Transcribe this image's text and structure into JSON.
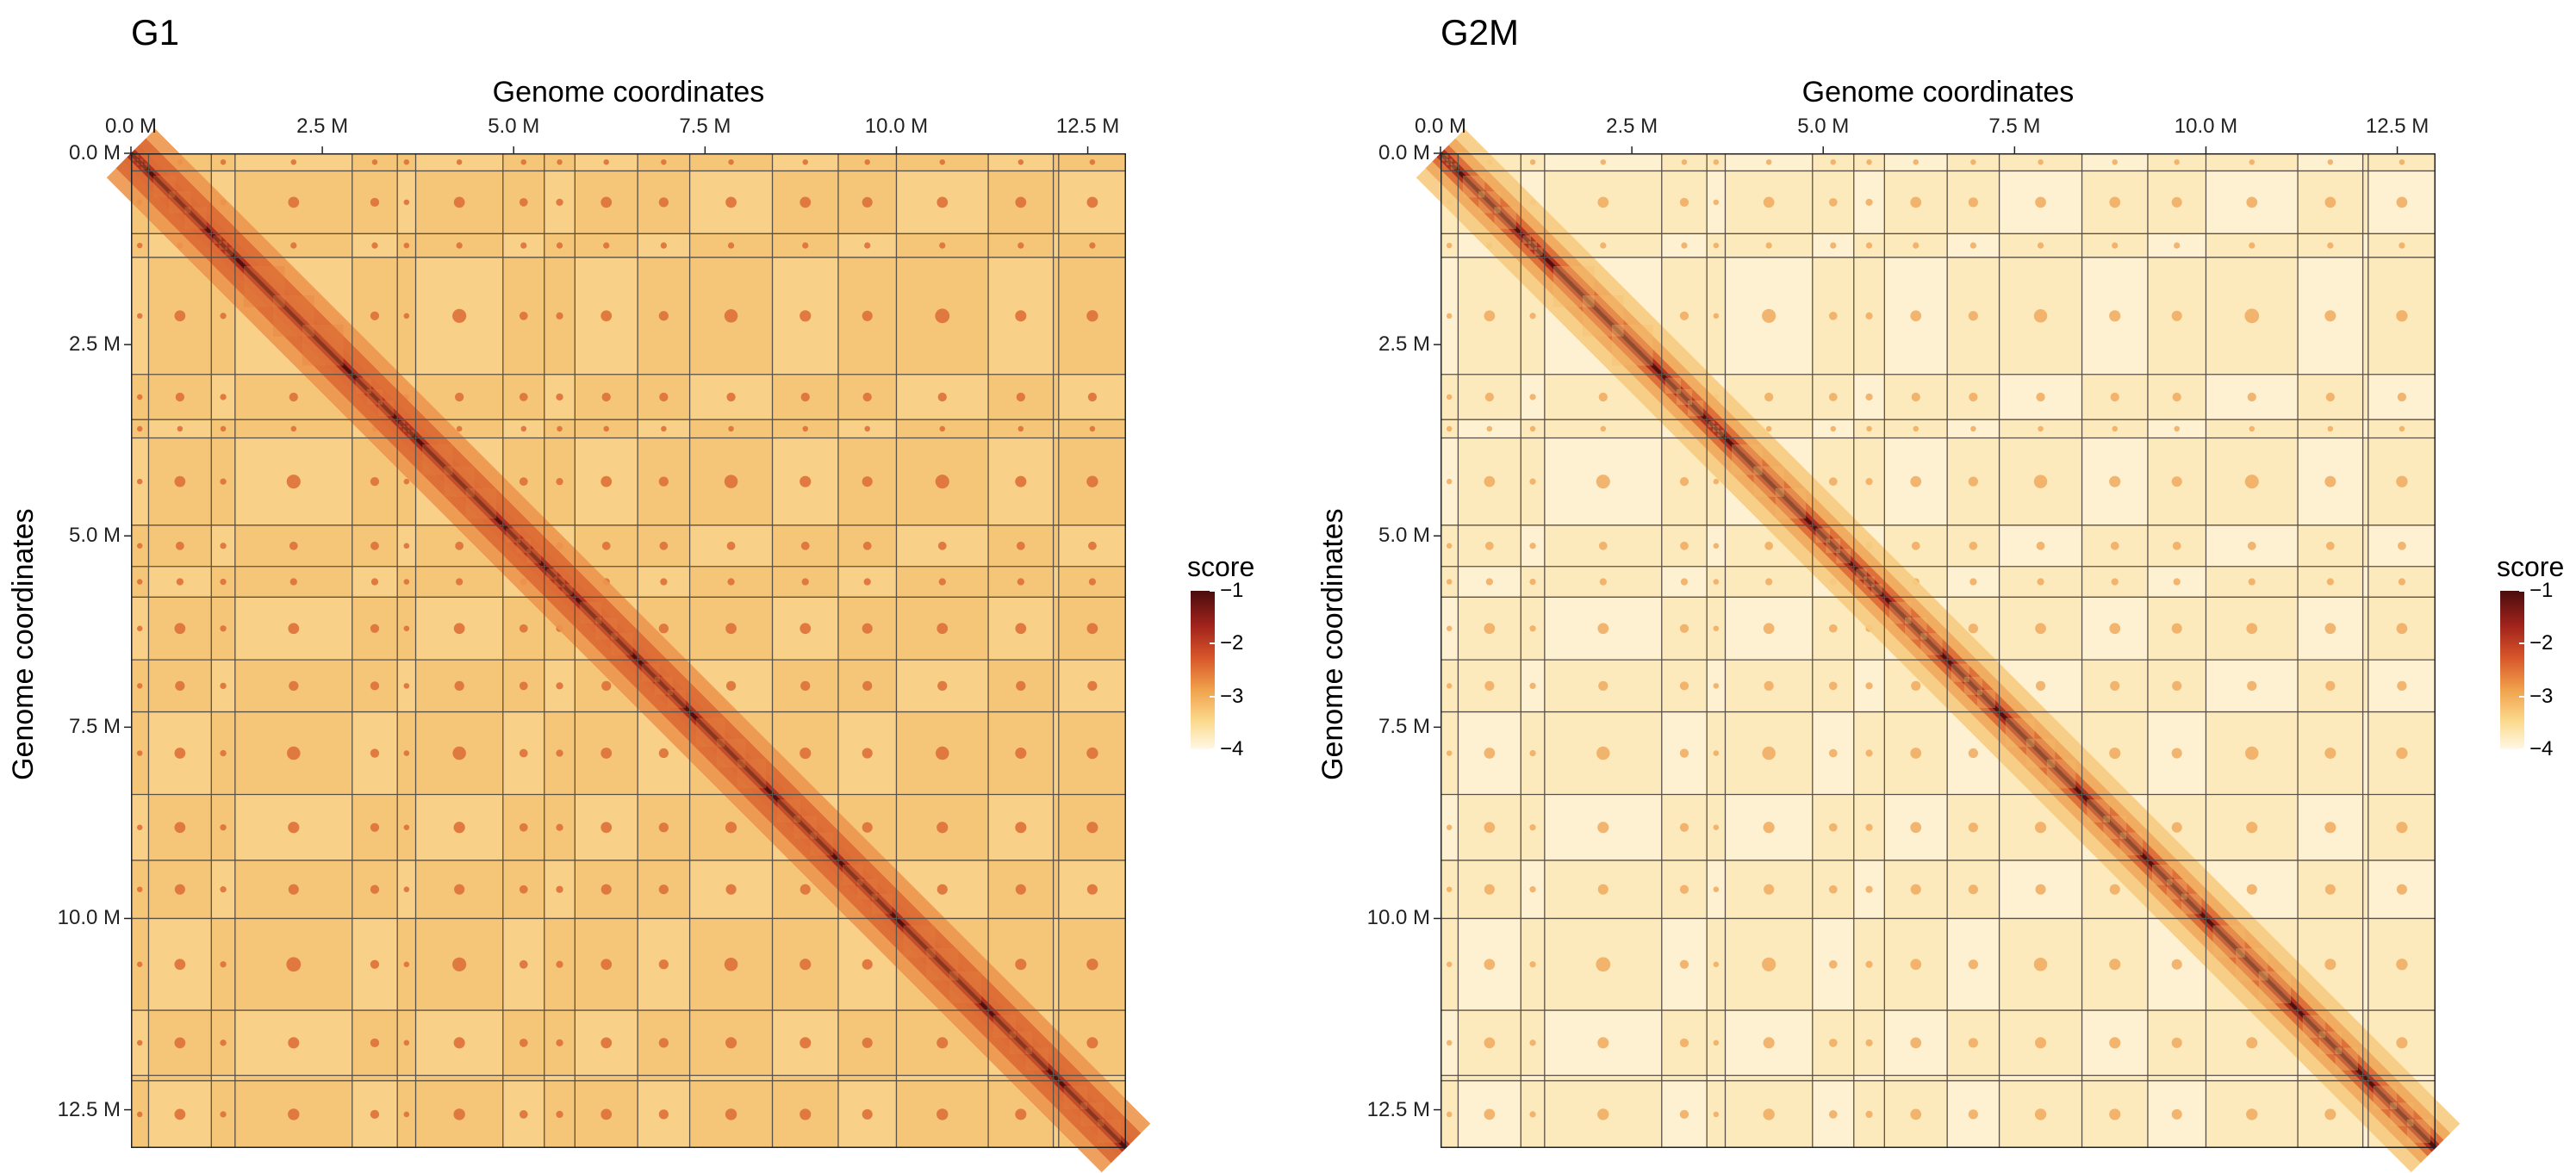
{
  "chart_data": [
    {
      "type": "heatmap",
      "title": "G1",
      "xlabel": "Genome coordinates",
      "ylabel": "Genome coordinates",
      "xlim": [
        0,
        13.0
      ],
      "ylim": [
        0,
        13.0
      ],
      "x_ticks": [
        "0.0 M",
        "2.5 M",
        "5.0 M",
        "7.5 M",
        "10.0 M",
        "12.5 M"
      ],
      "y_ticks": [
        "0.0 M",
        "2.5 M",
        "5.0 M",
        "7.5 M",
        "10.0 M",
        "12.5 M"
      ],
      "tick_values": [
        0,
        2.5,
        5.0,
        7.5,
        10.0,
        12.5
      ],
      "boundaries_mb": [
        0.23,
        1.05,
        1.36,
        2.89,
        3.48,
        3.72,
        4.86,
        5.4,
        5.8,
        6.62,
        7.3,
        8.38,
        9.24,
        10.0,
        11.2,
        12.05,
        12.12
      ],
      "background_level": -3.1,
      "legend": {
        "title": "score",
        "ticks": [
          "−1",
          "−2",
          "−3",
          "−4"
        ],
        "tick_values": [
          -1,
          -2,
          -3,
          -4
        ],
        "position": "right"
      },
      "colors": {
        "high": "#4a0d0d",
        "mid": "#d7552a",
        "low": "#fff8e6"
      }
    },
    {
      "type": "heatmap",
      "title": "G2M",
      "xlabel": "Genome coordinates",
      "ylabel": "Genome coordinates",
      "xlim": [
        0,
        13.0
      ],
      "ylim": [
        0,
        13.0
      ],
      "x_ticks": [
        "0.0 M",
        "2.5 M",
        "5.0 M",
        "7.5 M",
        "10.0 M",
        "12.5 M"
      ],
      "y_ticks": [
        "0.0 M",
        "2.5 M",
        "5.0 M",
        "7.5 M",
        "10.0 M",
        "12.5 M"
      ],
      "tick_values": [
        0,
        2.5,
        5.0,
        7.5,
        10.0,
        12.5
      ],
      "boundaries_mb": [
        0.23,
        1.05,
        1.36,
        2.89,
        3.48,
        3.72,
        4.86,
        5.4,
        5.8,
        6.62,
        7.3,
        8.38,
        9.24,
        10.0,
        11.2,
        12.05,
        12.12
      ],
      "background_level": -3.7,
      "legend": {
        "title": "score",
        "ticks": [
          "−1",
          "−2",
          "−3",
          "−4"
        ],
        "tick_values": [
          -1,
          -2,
          -3,
          -4
        ],
        "position": "right"
      },
      "colors": {
        "high": "#4a0d0d",
        "mid": "#d7552a",
        "low": "#fff8e6"
      }
    }
  ]
}
